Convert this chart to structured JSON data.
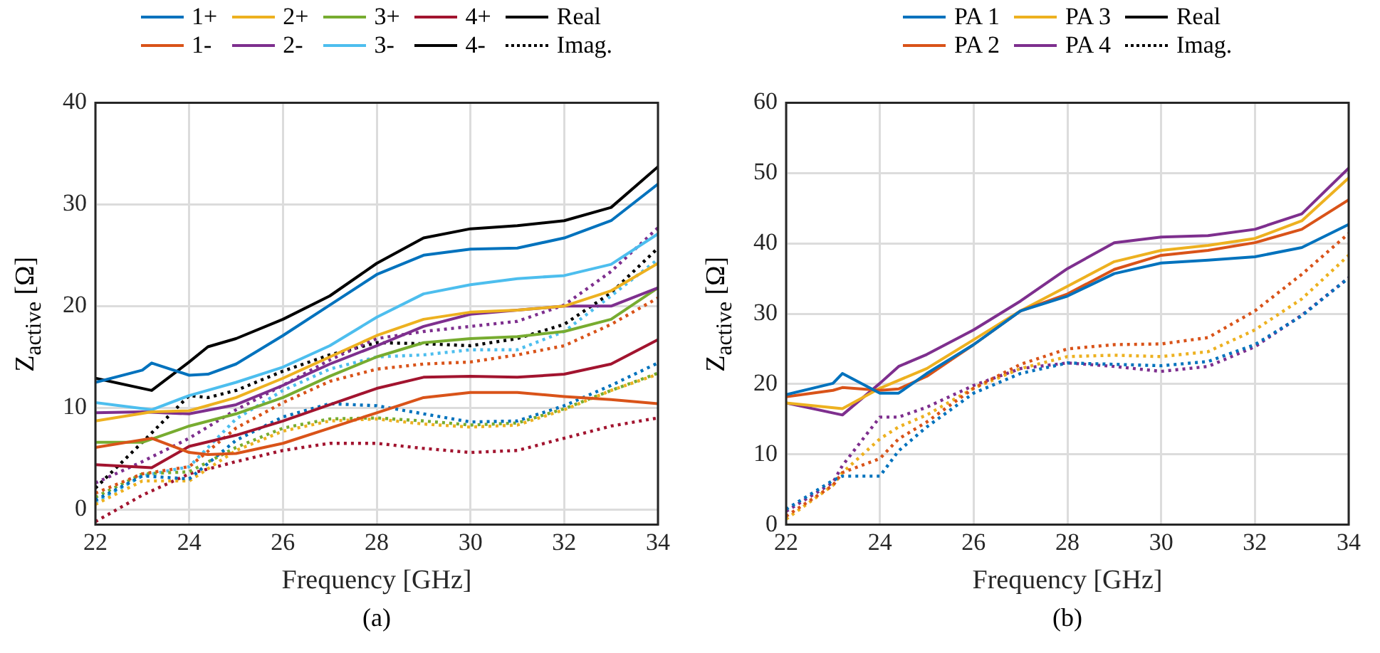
{
  "chart_data": [
    {
      "type": "line",
      "xlabel": "Frequency [GHz]",
      "ylabel": "Z$_{active}$ [Ω]",
      "annotations": [
        "(a)"
      ],
      "xlim": [
        22,
        34
      ],
      "xticks": [
        22,
        24,
        26,
        28,
        30,
        32,
        34
      ],
      "ylim": [
        -1.5,
        40
      ],
      "yticks": [
        0,
        10,
        20,
        30,
        40
      ],
      "grid": true,
      "legend": "top",
      "marker": "none",
      "series": [
        {
          "name": "1+",
          "color": "#0072bd",
          "line_style": "solid",
          "x": [
            22,
            23,
            23.2,
            24,
            24.4,
            25,
            26,
            27,
            28,
            29,
            30,
            31,
            32,
            33,
            34
          ],
          "values": [
            12.5,
            13.7,
            14.4,
            13.2,
            13.3,
            14.3,
            17.1,
            20.1,
            23.1,
            25,
            25.6,
            25.7,
            26.7,
            28.4,
            32
          ]
        },
        {
          "name": "1-",
          "color": "#d95319",
          "line_style": "solid",
          "x": [
            22,
            23.2,
            24,
            24.4,
            25,
            26,
            27,
            28,
            29,
            30,
            31,
            32,
            33,
            34
          ],
          "values": [
            6.1,
            7,
            5.6,
            5.4,
            5.5,
            6.5,
            8,
            9.5,
            11,
            11.5,
            11.5,
            11.1,
            10.8,
            10.4
          ]
        },
        {
          "name": "2+",
          "color": "#edb120",
          "line_style": "solid",
          "x": [
            22,
            23.2,
            24,
            25,
            26,
            27,
            28,
            29,
            30,
            31,
            32,
            33,
            34
          ],
          "values": [
            8.7,
            9.6,
            9.7,
            11,
            12.9,
            15,
            17.1,
            18.7,
            19.4,
            19.6,
            20,
            21.5,
            24.2
          ]
        },
        {
          "name": "2-",
          "color": "#7e2f8e",
          "line_style": "solid",
          "x": [
            22,
            23,
            24,
            25,
            26,
            27,
            28,
            29,
            30,
            31,
            32,
            33,
            34
          ],
          "values": [
            9.5,
            9.6,
            9.4,
            10.3,
            12.2,
            14.3,
            16.1,
            18,
            19.2,
            19.6,
            20,
            20,
            21.8
          ]
        },
        {
          "name": "3+",
          "color": "#77ac30",
          "line_style": "solid",
          "x": [
            22,
            23,
            24,
            25,
            26,
            27,
            28,
            29,
            30,
            31,
            32,
            33,
            34
          ],
          "values": [
            6.6,
            6.6,
            8.2,
            9.4,
            11,
            13.1,
            15,
            16.4,
            16.8,
            17,
            17.5,
            18.7,
            21.8
          ]
        },
        {
          "name": "3-",
          "color": "#4dbeee",
          "line_style": "solid",
          "x": [
            22,
            23.2,
            24,
            25,
            26,
            27,
            28,
            29,
            30,
            31,
            32,
            33,
            34
          ],
          "values": [
            10.5,
            9.8,
            11.2,
            12.5,
            14,
            16.1,
            18.9,
            21.2,
            22.1,
            22.7,
            23,
            24.1,
            27.1
          ]
        },
        {
          "name": "4+",
          "color": "#a2142f",
          "line_style": "solid",
          "x": [
            22,
            23.2,
            24,
            25,
            26,
            27,
            28,
            29,
            30,
            31,
            32,
            33,
            34
          ],
          "values": [
            4.4,
            4.1,
            6.2,
            7.3,
            8.7,
            10.3,
            11.9,
            13,
            13.1,
            13,
            13.3,
            14.3,
            16.7
          ]
        },
        {
          "name": "4-",
          "color": "#000000",
          "line_style": "solid",
          "x": [
            22,
            23.2,
            24,
            24.4,
            25,
            26,
            27,
            28,
            29,
            30,
            31,
            32,
            33,
            34
          ],
          "values": [
            12.9,
            11.7,
            14.5,
            16,
            16.8,
            18.7,
            21,
            24.2,
            26.7,
            27.6,
            27.9,
            28.4,
            29.7,
            33.7
          ]
        },
        {
          "name": "Real",
          "color": "#000000",
          "line_style": "solid"
        },
        {
          "name": "Imag.",
          "color": "#000000",
          "line_style": "dotted"
        },
        {
          "color": "#0072bd",
          "line_style": "dotted",
          "x": [
            22,
            23,
            24,
            25,
            26,
            27,
            28,
            29,
            30,
            31,
            32,
            33,
            34
          ],
          "values": [
            0.9,
            3.3,
            3,
            6.8,
            9.1,
            10.4,
            10.2,
            9.4,
            8.6,
            8.7,
            10.2,
            12.2,
            14.4
          ]
        },
        {
          "color": "#d95319",
          "line_style": "dotted",
          "x": [
            22,
            23,
            24,
            25,
            26,
            27,
            28,
            29,
            30,
            31,
            32,
            33,
            34
          ],
          "values": [
            1.6,
            3.5,
            4.2,
            8,
            10.5,
            12.6,
            13.8,
            14.3,
            14.5,
            15.2,
            16.1,
            18.2,
            20.8
          ]
        },
        {
          "color": "#edb120",
          "line_style": "dotted",
          "x": [
            22,
            23,
            24,
            25,
            26,
            27,
            28,
            29,
            30,
            31,
            32,
            33,
            34
          ],
          "values": [
            0.5,
            2.8,
            2.8,
            5.8,
            7.7,
            8.7,
            8.9,
            8.4,
            8.1,
            8.3,
            9.8,
            11.7,
            13.3
          ]
        },
        {
          "color": "#7e2f8e",
          "line_style": "dotted",
          "x": [
            22,
            23,
            24,
            25,
            26,
            27,
            28,
            29,
            30,
            31,
            32,
            33,
            34
          ],
          "values": [
            2.6,
            4.7,
            7,
            9.8,
            12.2,
            14.7,
            16.8,
            17.5,
            18,
            18.5,
            20.1,
            23.4,
            27.7
          ]
        },
        {
          "color": "#77ac30",
          "line_style": "dotted",
          "x": [
            22,
            23,
            24,
            25,
            26,
            27,
            28,
            29,
            30,
            31,
            32,
            33,
            34
          ],
          "values": [
            1.2,
            3.5,
            3.7,
            6.1,
            8,
            8.9,
            9,
            8.7,
            8.3,
            8.5,
            9.9,
            11.7,
            13.4
          ]
        },
        {
          "color": "#4dbeee",
          "line_style": "dotted",
          "x": [
            22,
            23,
            24,
            25,
            26,
            27,
            28,
            29,
            30,
            31,
            32,
            33,
            34
          ],
          "values": [
            0.7,
            3.3,
            4.2,
            8.9,
            11.7,
            13.8,
            15,
            15.2,
            15.7,
            15.7,
            17.5,
            21,
            24.6
          ]
        },
        {
          "color": "#a2142f",
          "line_style": "dotted",
          "x": [
            22,
            23,
            24,
            25,
            26,
            27,
            28,
            29,
            30,
            31,
            32,
            33,
            34
          ],
          "values": [
            -1.2,
            1.4,
            3.5,
            4.7,
            5.8,
            6.5,
            6.5,
            6,
            5.6,
            5.8,
            7,
            8.2,
            9
          ]
        },
        {
          "color": "#000000",
          "line_style": "dotted",
          "x": [
            22,
            23,
            24,
            24.4,
            25,
            26,
            27,
            28,
            29,
            30,
            31,
            32,
            33,
            34
          ],
          "values": [
            2.1,
            6.6,
            11.2,
            11,
            11.7,
            13.6,
            15.2,
            16.4,
            16.3,
            16.1,
            16.8,
            18.2,
            21.3,
            25.7
          ]
        }
      ]
    },
    {
      "type": "line",
      "xlabel": "Frequency [GHz]",
      "ylabel": "Z$_{active}$ [Ω]",
      "annotations": [
        "(b)"
      ],
      "xlim": [
        22,
        34
      ],
      "xticks": [
        22,
        24,
        26,
        28,
        30,
        32,
        34
      ],
      "ylim": [
        0,
        60
      ],
      "yticks": [
        0,
        10,
        20,
        30,
        40,
        50,
        60
      ],
      "grid": true,
      "legend": "top",
      "marker": "none",
      "series": [
        {
          "name": "PA 1",
          "color": "#0072bd",
          "line_style": "solid",
          "x": [
            22,
            23,
            23.2,
            24,
            24.4,
            25,
            26,
            27,
            28,
            29,
            30,
            31,
            32,
            33,
            34
          ],
          "values": [
            18.5,
            20.1,
            21.5,
            18.7,
            18.7,
            21.5,
            25.6,
            30.4,
            32.5,
            35.7,
            37.2,
            37.6,
            38.1,
            39.4,
            42.7
          ]
        },
        {
          "name": "PA 2",
          "color": "#d95319",
          "line_style": "solid",
          "x": [
            22,
            23,
            23.2,
            24,
            24.4,
            25,
            26,
            27,
            28,
            29,
            30,
            31,
            32,
            33,
            34
          ],
          "values": [
            18.2,
            19.1,
            19.5,
            19.1,
            19.3,
            21.1,
            25.6,
            30.4,
            32.8,
            36.3,
            38.3,
            39,
            40.1,
            42,
            46.2
          ]
        },
        {
          "name": "PA 3",
          "color": "#edb120",
          "line_style": "solid",
          "x": [
            22,
            23.2,
            24,
            25,
            26,
            27,
            28,
            29,
            30,
            31,
            32,
            33,
            34
          ],
          "values": [
            17.3,
            16.5,
            19.4,
            22.2,
            26.3,
            30.4,
            33.9,
            37.4,
            39,
            39.7,
            40.7,
            43.2,
            49.3
          ]
        },
        {
          "name": "PA 4",
          "color": "#7e2f8e",
          "line_style": "solid",
          "x": [
            22,
            23.2,
            24,
            24.4,
            25,
            26,
            27,
            28,
            29,
            30,
            31,
            32,
            33,
            34
          ],
          "values": [
            17.3,
            15.6,
            20.1,
            22.5,
            24.2,
            27.7,
            31.8,
            36.4,
            40.1,
            40.9,
            41.1,
            42,
            44.2,
            50.7
          ]
        },
        {
          "name": "Real",
          "color": "#000000",
          "line_style": "solid"
        },
        {
          "name": "Imag.",
          "color": "#000000",
          "line_style": "dotted"
        },
        {
          "color": "#0072bd",
          "line_style": "dotted",
          "x": [
            22,
            23,
            23.2,
            24,
            24.4,
            25,
            26,
            27,
            28,
            29,
            30,
            31,
            32,
            33,
            34
          ],
          "values": [
            2.2,
            6.3,
            6.9,
            6.9,
            10.5,
            13.9,
            18.7,
            21.5,
            23,
            22.8,
            22.6,
            23.2,
            25.6,
            29.7,
            35.1
          ]
        },
        {
          "color": "#d95319",
          "line_style": "dotted",
          "x": [
            22,
            23,
            23.2,
            24,
            24.4,
            25,
            26,
            27,
            28,
            29,
            30,
            31,
            32,
            33,
            34
          ],
          "values": [
            1.2,
            5.6,
            7.4,
            9.4,
            12.2,
            14.6,
            19.4,
            22.8,
            25,
            25.6,
            25.7,
            26.6,
            30.4,
            35.6,
            41.4
          ]
        },
        {
          "color": "#edb120",
          "line_style": "dotted",
          "x": [
            22,
            23,
            23.2,
            24,
            24.4,
            25,
            26,
            27,
            28,
            29,
            30,
            31,
            32,
            33,
            34
          ],
          "values": [
            0.8,
            5.6,
            7.4,
            12.2,
            13.9,
            15.6,
            19.4,
            22.2,
            23.9,
            24.1,
            23.9,
            24.6,
            27.7,
            32.1,
            38.3
          ]
        },
        {
          "color": "#7e2f8e",
          "line_style": "dotted",
          "x": [
            22,
            23,
            23.2,
            24,
            24.4,
            25,
            26,
            27,
            28,
            29,
            30,
            31,
            32,
            33,
            34
          ],
          "values": [
            1.9,
            6,
            8.4,
            15.3,
            15.3,
            16.7,
            19.8,
            22.2,
            23,
            22.5,
            21.8,
            22.5,
            25.3,
            29.8,
            35.1
          ]
        }
      ]
    }
  ]
}
